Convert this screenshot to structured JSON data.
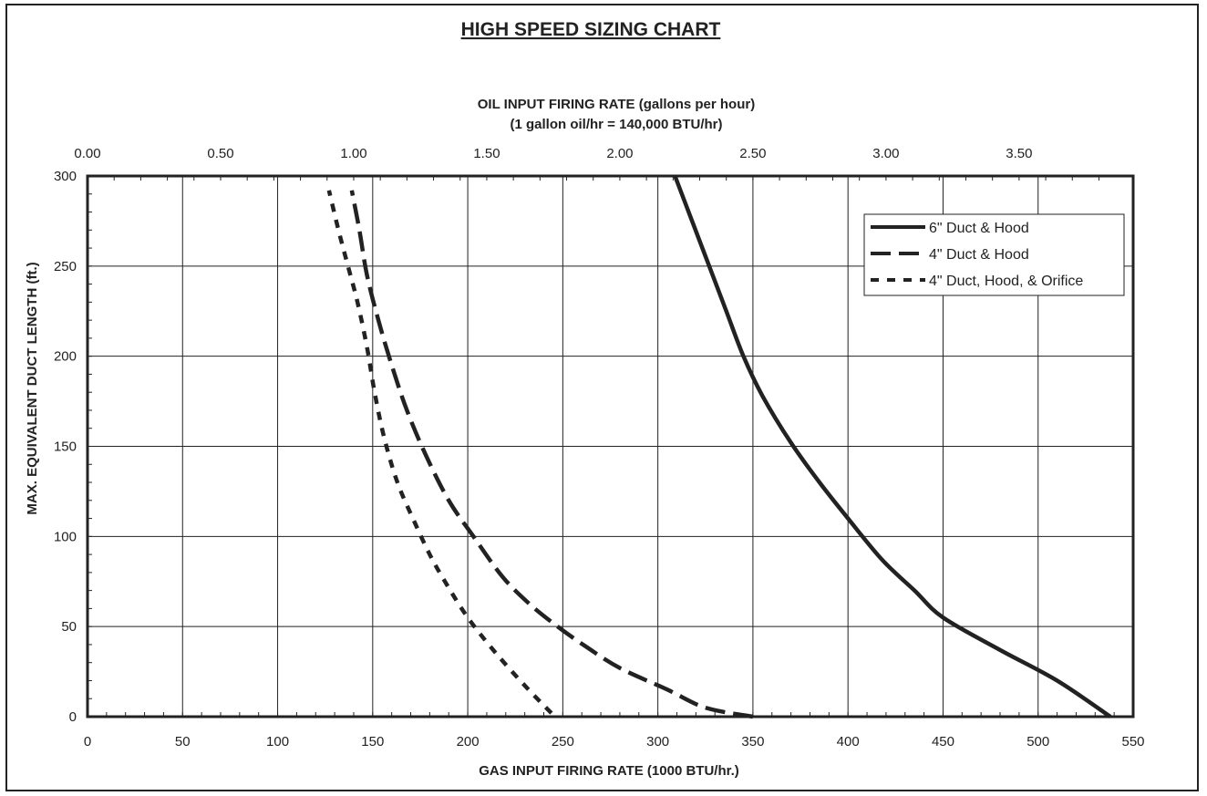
{
  "chart_data": {
    "type": "line",
    "title": "HIGH SPEED SIZING CHART",
    "xlabel": "GAS INPUT FIRING RATE (1000 BTU/hr.)",
    "ylabel": "MAX. EQUIVALENT DUCT LENGTH (ft.)",
    "top_axis": {
      "label_line1": "OIL INPUT FIRING RATE (gallons per hour)",
      "label_line2": "(1 gallon oil/hr = 140,000 BTU/hr)",
      "ticks": [
        "0.00",
        "0.50",
        "1.00",
        "1.50",
        "2.00",
        "2.50",
        "3.00",
        "3.50"
      ],
      "tick_values": [
        0,
        0.5,
        1.0,
        1.5,
        2.0,
        2.5,
        3.0,
        3.5
      ],
      "factor_gas_per_gph": 140
    },
    "xlim": [
      0,
      550
    ],
    "ylim": [
      0,
      300
    ],
    "x_ticks": [
      "0",
      "50",
      "100",
      "150",
      "200",
      "250",
      "300",
      "350",
      "400",
      "450",
      "500",
      "550"
    ],
    "x_tick_values": [
      0,
      50,
      100,
      150,
      200,
      250,
      300,
      350,
      400,
      450,
      500,
      550
    ],
    "y_ticks": [
      "0",
      "50",
      "100",
      "150",
      "200",
      "250",
      "300"
    ],
    "y_tick_values": [
      0,
      50,
      100,
      150,
      200,
      250,
      300
    ],
    "grid": true,
    "legend_position": "top-right",
    "series": [
      {
        "name": "6\" Duct & Hood",
        "style": "solid",
        "points": [
          [
            538,
            0
          ],
          [
            510,
            20
          ],
          [
            480,
            37
          ],
          [
            450,
            55
          ],
          [
            435,
            70
          ],
          [
            418,
            87
          ],
          [
            400,
            110
          ],
          [
            385,
            130
          ],
          [
            370,
            152
          ],
          [
            355,
            178
          ],
          [
            345,
            200
          ],
          [
            336,
            225
          ],
          [
            327,
            250
          ],
          [
            318,
            275
          ],
          [
            309,
            300
          ]
        ]
      },
      {
        "name": "4\" Duct & Hood",
        "style": "long-dash",
        "points": [
          [
            350,
            0
          ],
          [
            325,
            5
          ],
          [
            305,
            15
          ],
          [
            280,
            27
          ],
          [
            262,
            39
          ],
          [
            246,
            51
          ],
          [
            232,
            63
          ],
          [
            218,
            78
          ],
          [
            203,
            100
          ],
          [
            190,
            120
          ],
          [
            178,
            145
          ],
          [
            168,
            170
          ],
          [
            160,
            195
          ],
          [
            153,
            220
          ],
          [
            147,
            245
          ],
          [
            143,
            270
          ],
          [
            139,
            292
          ]
        ]
      },
      {
        "name": "4\" Duct, Hood, & Orifice",
        "style": "short-dash",
        "points": [
          [
            244,
            2
          ],
          [
            232,
            15
          ],
          [
            215,
            35
          ],
          [
            200,
            55
          ],
          [
            188,
            75
          ],
          [
            180,
            90
          ],
          [
            172,
            108
          ],
          [
            163,
            130
          ],
          [
            156,
            155
          ],
          [
            151,
            180
          ],
          [
            147,
            205
          ],
          [
            142,
            230
          ],
          [
            137,
            250
          ],
          [
            132,
            270
          ],
          [
            127,
            292
          ]
        ]
      }
    ]
  },
  "colors": {
    "line": "#222222",
    "grid": "#222222",
    "background": "#ffffff"
  }
}
